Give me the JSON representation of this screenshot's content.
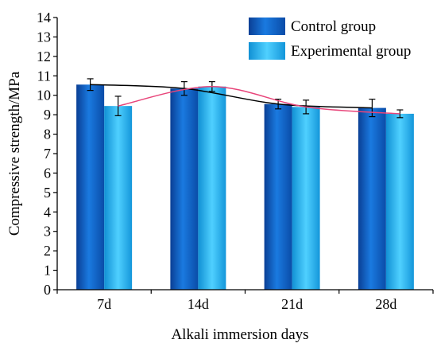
{
  "chart_data": {
    "type": "bar",
    "title": "",
    "xlabel": "Alkali immersion days",
    "ylabel": "Compressive strength/MPa",
    "categories": [
      "7d",
      "14d",
      "21d",
      "28d"
    ],
    "ylim": [
      0,
      14
    ],
    "yticks": [
      "0",
      "1",
      "2",
      "3",
      "4",
      "5",
      "6",
      "7",
      "8",
      "9",
      "10",
      "11",
      "12",
      "13",
      "14"
    ],
    "legend_position": "top-right",
    "grid": false,
    "series": [
      {
        "name": "Control group",
        "values": [
          10.55,
          10.35,
          9.55,
          9.35
        ],
        "errors": [
          0.3,
          0.35,
          0.25,
          0.45
        ],
        "color": "#1464c8",
        "trend_color": "#000000"
      },
      {
        "name": "Experimental group",
        "values": [
          9.45,
          10.45,
          9.4,
          9.05
        ],
        "errors": [
          0.5,
          0.25,
          0.35,
          0.2
        ],
        "color": "#1aa6e6",
        "trend_color": "#e8457a"
      }
    ]
  }
}
